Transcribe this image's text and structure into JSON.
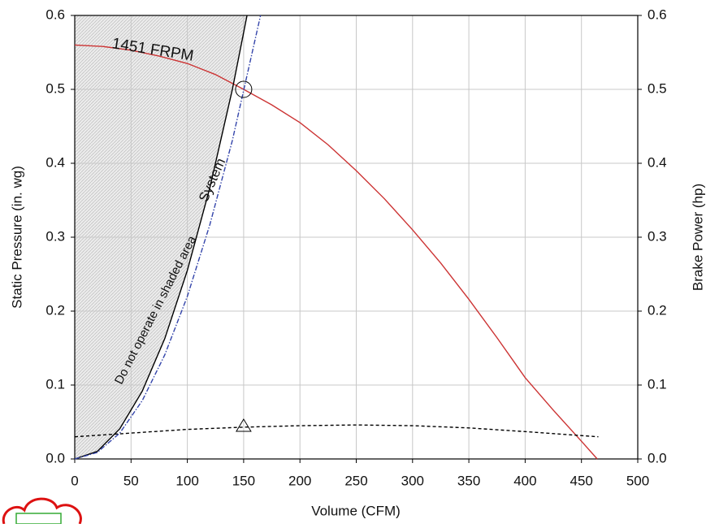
{
  "chart_data": {
    "type": "line",
    "xlabel": "Volume (CFM)",
    "ylabel": "Static Pressure (in. wg)",
    "y2label": "Brake Power (hp)",
    "xlim": [
      0,
      500
    ],
    "xticks": [
      0,
      50,
      100,
      150,
      200,
      250,
      300,
      350,
      400,
      450,
      500
    ],
    "ylim": [
      0,
      0.6
    ],
    "yticks": [
      {
        "value": 0,
        "label": "0.0"
      },
      0.1,
      0.2,
      0.3,
      0.4,
      0.5,
      0.6
    ],
    "y2lim": [
      0,
      0.6
    ],
    "y2ticks": [
      {
        "value": 0,
        "label": "0.0"
      },
      0.1,
      0.2,
      0.3,
      0.4,
      0.5,
      0.6
    ],
    "grid": true,
    "shade": true,
    "series": [
      {
        "name": "1451 FRPM",
        "color": "#cc3333",
        "style": "solid",
        "x": [
          0,
          25,
          50,
          75,
          100,
          125,
          150,
          175,
          200,
          225,
          250,
          275,
          300,
          325,
          350,
          375,
          400,
          425,
          450,
          464
        ],
        "values": [
          0.56,
          0.558,
          0.553,
          0.545,
          0.535,
          0.52,
          0.5,
          0.479,
          0.455,
          0.425,
          0.39,
          0.352,
          0.31,
          0.265,
          0.216,
          0.164,
          0.11,
          0.066,
          0.024,
          0
        ]
      },
      {
        "name": "System",
        "color": "#000000",
        "style": "solid",
        "x": [
          0,
          20,
          40,
          60,
          80,
          100,
          120,
          140,
          153
        ],
        "values": [
          0,
          0.0102,
          0.0408,
          0.0918,
          0.163,
          0.255,
          0.367,
          0.5,
          0.6
        ]
      },
      {
        "color": "#3344aa",
        "style": "dashdot",
        "x": [
          0,
          20,
          40,
          60,
          80,
          100,
          120,
          140,
          165
        ],
        "values": [
          0,
          0.0088,
          0.035,
          0.079,
          0.141,
          0.22,
          0.317,
          0.431,
          0.6
        ]
      },
      {
        "color": "#000000",
        "style": "dashed",
        "axis": "y2",
        "x": [
          0,
          50,
          100,
          150,
          200,
          250,
          300,
          350,
          400,
          465
        ],
        "values": [
          0.03,
          0.035,
          0.04,
          0.043,
          0.045,
          0.046,
          0.045,
          0.042,
          0.037,
          0.03
        ]
      }
    ],
    "markers": [
      {
        "shape": "circle",
        "x": 150,
        "y": 0.5
      },
      {
        "shape": "triangle",
        "x": 150,
        "y": 0.045,
        "axis": "y2"
      }
    ],
    "annotations": [
      {
        "text": "Do not operate in shaded area"
      }
    ]
  }
}
